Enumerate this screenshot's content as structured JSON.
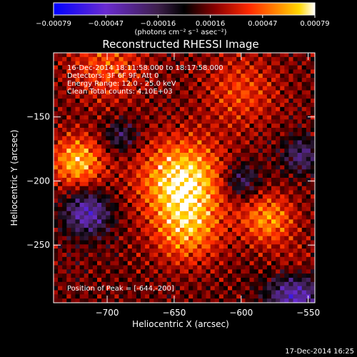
{
  "chart_data": {
    "type": "heatmap",
    "title": "Reconstructed RHESSI Image",
    "xlabel": "Heliocentric X (arcsec)",
    "ylabel": "Heliocentric Y (arcsec)",
    "xlim": [
      -740,
      -545
    ],
    "ylim": [
      -295,
      -100
    ],
    "xticks": [
      -700,
      -650,
      -600,
      -550
    ],
    "yticks": [
      -150,
      -200,
      -250
    ],
    "xtick_labels": [
      "−700",
      "−650",
      "−600",
      "−550"
    ],
    "ytick_labels": [
      "−150",
      "−200",
      "−250"
    ],
    "colorbar": {
      "range": [
        -0.00079,
        0.00079
      ],
      "tick_labels": [
        "−0.00079",
        "−0.00047",
        "−0.00016",
        "0.00016",
        "0.00047",
        "0.00079"
      ],
      "unit_label": "(photons cm⁻² s⁻¹ asec⁻²)",
      "colors": [
        "#0000ff",
        "#6a2bd0",
        "#3d1f4a",
        "#000000",
        "#8b0000",
        "#ff2a00",
        "#ff8c00",
        "#ffd700",
        "#ffffff"
      ]
    },
    "annotations": [
      "16-Dec-2014 18:11:58.000 to 18:17:58.000",
      "Detectors: 3F 6F 9F, Att 0",
      "Energy Range: 12.0 - 25.0 keV",
      "Clean     Total counts: 4.10E+03"
    ],
    "peak_label": "Position of Peak = [-644,-200]",
    "peak": [
      -644,
      -200
    ]
  },
  "footer_timestamp": "17-Dec-2014 16:25"
}
